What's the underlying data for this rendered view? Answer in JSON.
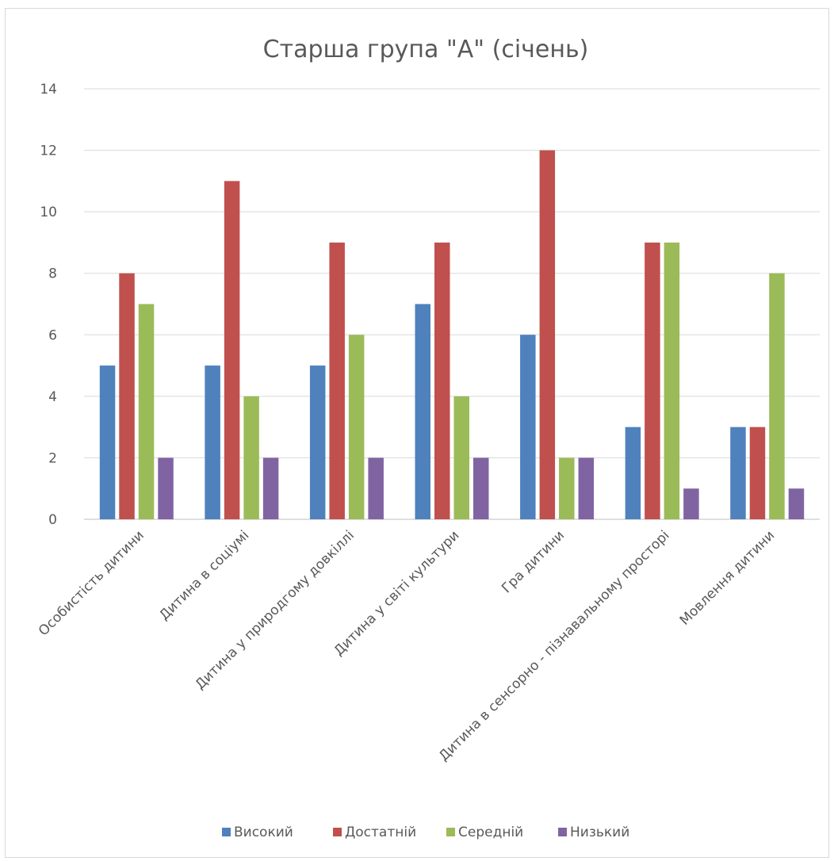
{
  "chart_data": {
    "type": "bar",
    "title": "Старша група \"А\" (січень)",
    "xlabel": "",
    "ylabel": "",
    "ylim": [
      0,
      14
    ],
    "ytick_step": 2,
    "yticks": [
      "0",
      "2",
      "4",
      "6",
      "8",
      "10",
      "12",
      "14"
    ],
    "grid": true,
    "legend_position": "bottom",
    "categories": [
      "Особистість дитини",
      "Дитина в соціумі",
      "Дитина у природгому довкіллі",
      "Дитина у світі культури",
      "Гра дитини",
      "Дитина в сенсорно - пізнавальному просторі",
      "Мовлення дитини"
    ],
    "series": [
      {
        "name": "Високий",
        "color": "#4f81bd",
        "values": [
          5,
          5,
          5,
          7,
          6,
          3,
          3
        ]
      },
      {
        "name": "Достатній",
        "color": "#c0504d",
        "values": [
          8,
          11,
          9,
          9,
          12,
          9,
          3
        ]
      },
      {
        "name": "Середній",
        "color": "#9bbb59",
        "values": [
          7,
          4,
          6,
          4,
          2,
          9,
          8
        ]
      },
      {
        "name": "Низький",
        "color": "#8064a2",
        "values": [
          2,
          2,
          2,
          2,
          2,
          1,
          1
        ]
      }
    ]
  }
}
